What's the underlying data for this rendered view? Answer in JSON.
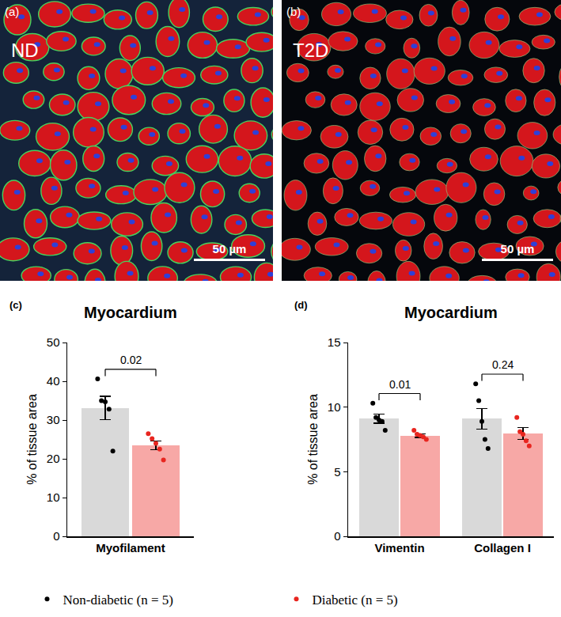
{
  "images": [
    {
      "letter": "(a)",
      "label": "ND",
      "scale_bar": "50 µm"
    },
    {
      "letter": "(b)",
      "label": "T2D",
      "scale_bar": "50 µm"
    }
  ],
  "chart_data": [
    {
      "letter": "(c)",
      "type": "bar",
      "title": "Myocardium",
      "ylabel": "% of tissue area",
      "categories": [
        "Myofilament"
      ],
      "ylim": [
        0,
        50
      ],
      "yticks": [
        0,
        10,
        20,
        30,
        40,
        50
      ],
      "legend": "bottom",
      "series": [
        {
          "name": "Non-diabetic (n = 5)",
          "color": "#000000",
          "values": [
            33.1
          ],
          "error": [
            3.0
          ],
          "points": [
            [
              40.6,
              35.0,
              34.7,
              32.8,
              22.0
            ]
          ]
        },
        {
          "name": "Diabetic (n = 5)",
          "color": "#e8251f",
          "values": [
            23.5
          ],
          "error": [
            1.1
          ],
          "points": [
            [
              26.5,
              25.2,
              24.0,
              22.5,
              19.7
            ]
          ]
        }
      ],
      "comparisons": [
        {
          "category": "Myofilament",
          "text": "0.02"
        }
      ]
    },
    {
      "letter": "(d)",
      "type": "bar",
      "title": "Myocardium",
      "ylabel": "% of tissue area",
      "categories": [
        "Vimentin",
        "Collagen I"
      ],
      "ylim": [
        0,
        15
      ],
      "yticks": [
        0,
        5,
        10,
        15
      ],
      "series": [
        {
          "name": "Non-diabetic (n = 5)",
          "color": "#000000",
          "values": [
            9.1,
            9.1
          ],
          "error": [
            0.35,
            0.8
          ],
          "points": [
            [
              10.3,
              9.2,
              9.0,
              8.9,
              8.2
            ],
            [
              11.8,
              10.5,
              8.9,
              7.5,
              6.8
            ]
          ]
        },
        {
          "name": "Diabetic (n = 5)",
          "color": "#e8251f",
          "values": [
            7.8,
            7.95
          ],
          "error": [
            0.15,
            0.45
          ],
          "points": [
            [
              8.2,
              7.9,
              7.8,
              7.7,
              7.5
            ],
            [
              9.2,
              8.1,
              7.9,
              7.4,
              7.0
            ]
          ]
        }
      ],
      "comparisons": [
        {
          "category": "Vimentin",
          "text": "0.01"
        },
        {
          "category": "Collagen I",
          "text": "0.24"
        }
      ]
    }
  ]
}
